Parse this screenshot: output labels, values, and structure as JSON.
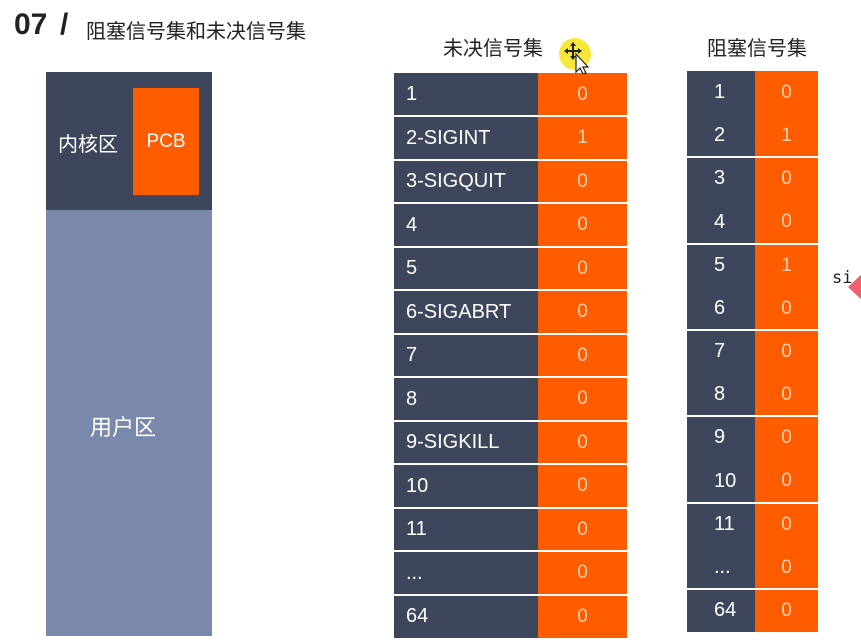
{
  "header": {
    "number": "07",
    "separator": "/",
    "title": "阻塞信号集和未决信号集"
  },
  "memory": {
    "kernel_label": "内核区",
    "pcb_label": "PCB",
    "user_label": "用户区"
  },
  "pending": {
    "title": "未决信号集",
    "rows": [
      {
        "name": "1",
        "value": "0"
      },
      {
        "name": "2-SIGINT",
        "value": "1"
      },
      {
        "name": "3-SIGQUIT",
        "value": "0"
      },
      {
        "name": "4",
        "value": "0"
      },
      {
        "name": "5",
        "value": "0"
      },
      {
        "name": "6-SIGABRT",
        "value": "0"
      },
      {
        "name": "7",
        "value": "0"
      },
      {
        "name": "8",
        "value": "0"
      },
      {
        "name": "9-SIGKILL",
        "value": "0"
      },
      {
        "name": "10",
        "value": "0"
      },
      {
        "name": "11",
        "value": "0"
      },
      {
        "name": "...",
        "value": "0"
      },
      {
        "name": "64",
        "value": "0"
      }
    ]
  },
  "blocked": {
    "title": "阻塞信号集",
    "rows": [
      {
        "name": "1",
        "value": "0"
      },
      {
        "name": "2",
        "value": "1"
      },
      {
        "name": "3",
        "value": "0"
      },
      {
        "name": "4",
        "value": "0"
      },
      {
        "name": "5",
        "value": "1"
      },
      {
        "name": "6",
        "value": "0"
      },
      {
        "name": "7",
        "value": "0"
      },
      {
        "name": "8",
        "value": "0"
      },
      {
        "name": "9",
        "value": "0"
      },
      {
        "name": "10",
        "value": "0"
      },
      {
        "name": "11",
        "value": "0"
      },
      {
        "name": "...",
        "value": "0"
      },
      {
        "name": "64",
        "value": "0"
      }
    ]
  },
  "side_text": "si",
  "colors": {
    "dark": "#3e465c",
    "user": "#7a88ab",
    "accent": "#ff5c00"
  },
  "icons": {
    "cursor": "move-cursor-icon",
    "arrow": "arrow-left-icon"
  }
}
